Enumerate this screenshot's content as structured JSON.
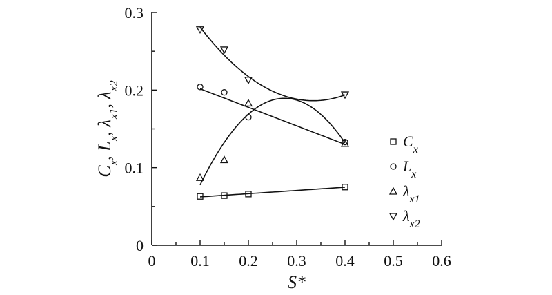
{
  "chart_data": {
    "type": "scatter",
    "title": "",
    "xlabel": "S*",
    "ylabel": "Cx, Lx, λx1, λx2",
    "xlim": [
      0,
      0.6
    ],
    "ylim": [
      0,
      0.3
    ],
    "xticks": [
      "0",
      "0.1",
      "0.2",
      "0.3",
      "0.4",
      "0.5",
      "0.6"
    ],
    "yticks": [
      "0",
      "0.1",
      "0.2",
      "0.3"
    ],
    "grid": false,
    "legend_position": "right",
    "series": [
      {
        "name": "Cx",
        "marker": "square",
        "x": [
          0.1,
          0.15,
          0.2,
          0.4
        ],
        "y": [
          0.063,
          0.064,
          0.066,
          0.075
        ],
        "fit": "line"
      },
      {
        "name": "Lx",
        "marker": "circle",
        "x": [
          0.1,
          0.15,
          0.2,
          0.4
        ],
        "y": [
          0.204,
          0.197,
          0.165,
          0.133
        ],
        "fit": "line"
      },
      {
        "name": "λx1",
        "marker": "triangle-up",
        "x": [
          0.1,
          0.15,
          0.2,
          0.4
        ],
        "y": [
          0.087,
          0.11,
          0.183,
          0.131
        ],
        "fit": "curve"
      },
      {
        "name": "λx2",
        "marker": "triangle-down",
        "x": [
          0.1,
          0.15,
          0.2,
          0.4
        ],
        "y": [
          0.278,
          0.252,
          0.213,
          0.194
        ],
        "fit": "curve"
      }
    ],
    "legend": [
      {
        "symbol": "square",
        "base": "C",
        "sub": "x"
      },
      {
        "symbol": "circle",
        "base": "L",
        "sub": "x"
      },
      {
        "symbol": "triangle-up",
        "base": "λ",
        "sub": "x1"
      },
      {
        "symbol": "triangle-down",
        "base": "λ",
        "sub": "x2"
      }
    ]
  }
}
